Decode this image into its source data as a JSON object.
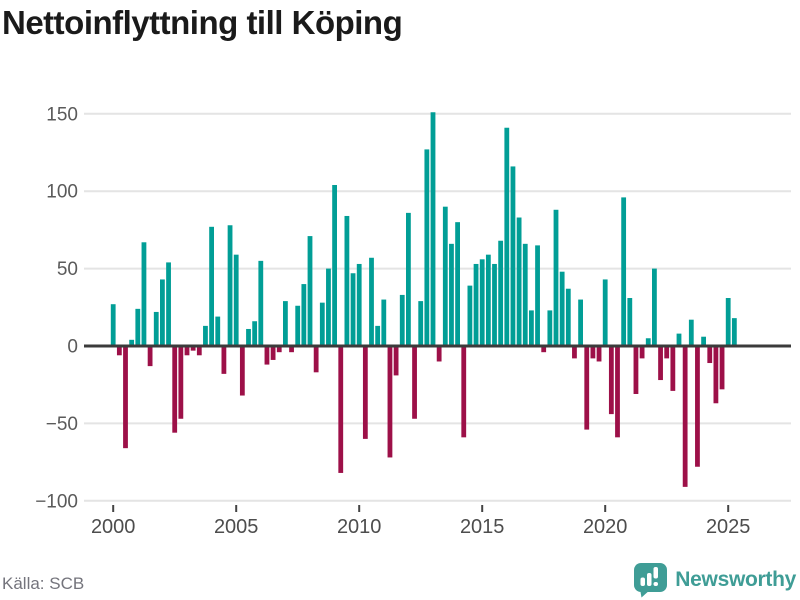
{
  "title": "Nettoinflyttning till Köping",
  "footer": {
    "source": "Källa: SCB",
    "brand": "Newsworthy"
  },
  "colors": {
    "positive": "#019e96",
    "negative": "#9d1048",
    "grid": "#e4e4e4",
    "zero_line": "#3b3b3b",
    "tick_mark": "#444444",
    "y_label": "#5a5a5a",
    "x_label": "#4d4d4d",
    "title_text": "#1a1a1a",
    "source_text": "#74747c",
    "brand_teal": "#3f9d96"
  },
  "chart_data": {
    "type": "bar",
    "title": "Nettoinflyttning till Köping",
    "frequency": "quarterly",
    "x_start": "2000 Q1",
    "x_end": "2025 Q2",
    "values": [
      27,
      -6,
      -66,
      4,
      24,
      67,
      -13,
      22,
      43,
      54,
      -56,
      -47,
      -6,
      -3,
      -6,
      13,
      77,
      19,
      -18,
      78,
      59,
      -32,
      11,
      16,
      55,
      -12,
      -9,
      -4,
      29,
      -4,
      26,
      40,
      71,
      -17,
      28,
      50,
      104,
      -82,
      84,
      47,
      53,
      -60,
      57,
      13,
      30,
      -72,
      -19,
      33,
      86,
      -47,
      29,
      127,
      151,
      -10,
      90,
      66,
      80,
      -59,
      39,
      53,
      56,
      59,
      53,
      68,
      141,
      116,
      83,
      66,
      23,
      65,
      -4,
      23,
      88,
      48,
      37,
      -8,
      30,
      -54,
      -8,
      -10,
      43,
      -44,
      -59,
      96,
      31,
      -31,
      -8,
      5,
      50,
      -22,
      -8,
      -29,
      8,
      -91,
      17,
      -78,
      6,
      -11,
      -37,
      -28,
      31,
      18
    ],
    "y_ticks": [
      150,
      100,
      50,
      0,
      -50,
      -100
    ],
    "x_tick_labels": [
      "2000",
      "2005",
      "2010",
      "2015",
      "2020",
      "2025"
    ],
    "x_tick_every_n_bars": 20,
    "ylim": [
      -100,
      155
    ],
    "grid": "horizontal",
    "legend": "none",
    "positive_color": "#019e96",
    "negative_color": "#9d1048"
  }
}
